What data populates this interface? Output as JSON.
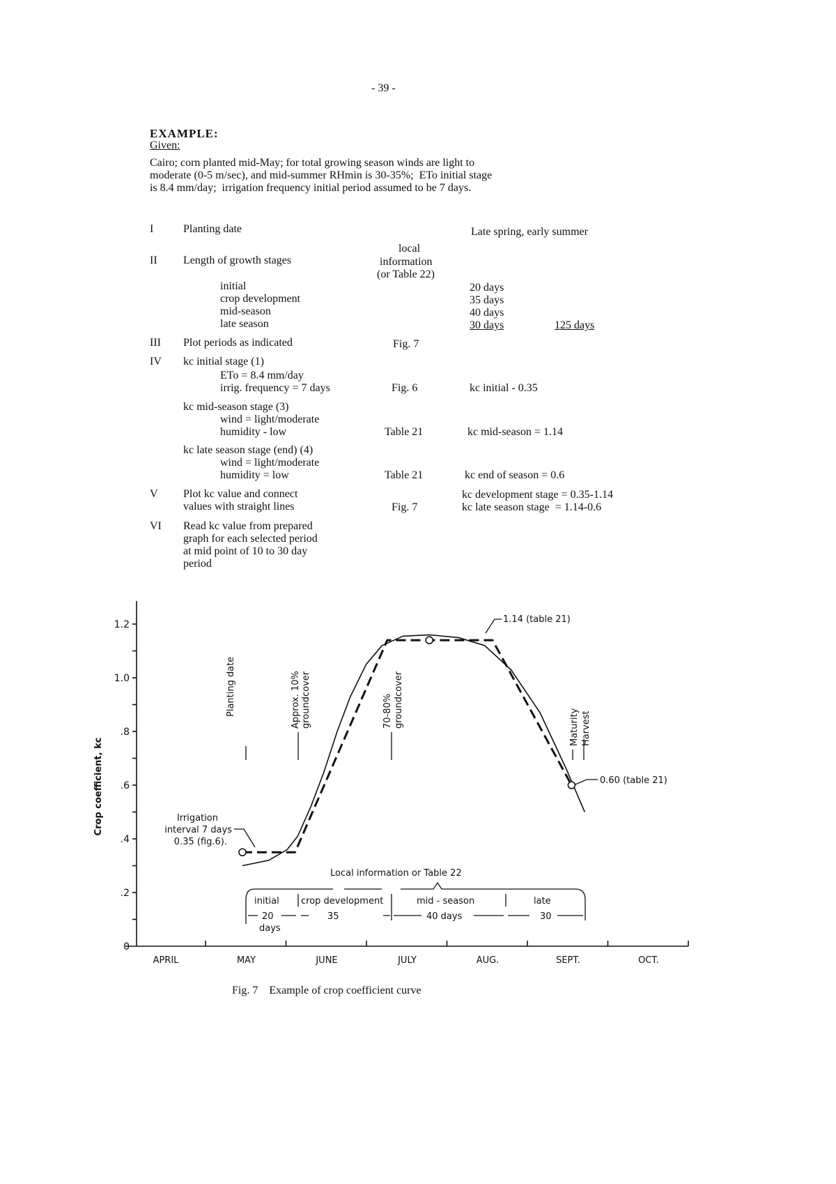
{
  "page_number": "- 39 -",
  "heading": "EXAMPLE:",
  "given_label": "Given:",
  "given_lines": [
    "Cairo; corn planted mid-May; for total growing season winds are light to",
    "moderate (0-5 m/sec), and mid-summer RHmin is 30-35%;  ETo initial stage",
    "is 8.4 mm/day;  irrigation frequency initial period assumed to be 7 days."
  ],
  "steps": {
    "i": {
      "num": "I",
      "label": "Planting date",
      "value": "Late spring, early summer"
    },
    "ii": {
      "num": "II",
      "label": "Length of growth stages",
      "source": [
        "local",
        "information",
        "(or Table 22)"
      ],
      "stages": [
        {
          "name": "initial",
          "days": "20 days"
        },
        {
          "name": "crop development",
          "days": "35 days"
        },
        {
          "name": "mid-season",
          "days": "40 days"
        },
        {
          "name": "late season",
          "days": "30 days"
        }
      ],
      "total": "125 days"
    },
    "iii": {
      "num": "III",
      "label": "Plot periods as indicated",
      "source": "Fig. 7"
    },
    "iv": {
      "num": "IV",
      "a_label": "kc initial stage (1)",
      "a_l1": "ETo = 8.4 mm/day",
      "a_l2": "irrig. frequency = 7 days",
      "a_src": "Fig. 6",
      "a_val": "kc initial - 0.35",
      "b_label": "kc mid-season stage (3)",
      "b_l1": "wind = light/moderate",
      "b_l2": "humidity - low",
      "b_src": "Table 21",
      "b_val": "kc mid-season = 1.14",
      "c_label": "kc late season stage (end) (4)",
      "c_l1": "wind = light/moderate",
      "c_l2": "humidity = low",
      "c_src": "Table 21",
      "c_val": "kc end of season = 0.6"
    },
    "v": {
      "num": "V",
      "l1": "Plot kc value and connect",
      "l2": "values with straight lines",
      "src": "Fig. 7",
      "val1": "kc development stage = 0.35-1.14",
      "val2": "kc late season stage  = 1.14-0.6"
    },
    "vi": {
      "num": "VI",
      "lines": [
        "Read kc value from prepared",
        "graph for each selected period",
        "at mid point of 10 to 30 day",
        "period"
      ]
    }
  },
  "caption": "Fig. 7    Example of crop coefficient curve",
  "chart_data": {
    "type": "line",
    "ylabel": "Crop coefficient, kc",
    "ylim": [
      0,
      1.25
    ],
    "yticks": [
      "0",
      ".2",
      ".4",
      ".6",
      ".8",
      "1.0",
      "1.2"
    ],
    "ytick_values": [
      0,
      0.2,
      0.4,
      0.6,
      0.8,
      1.0,
      1.2
    ],
    "xticks": [
      "APRIL",
      "MAY",
      "JUNE",
      "JULY",
      "AUG.",
      "SEPT.",
      "OCT."
    ],
    "series": [
      {
        "style": "dashed",
        "points": [
          [
            "05-15",
            0.35
          ],
          [
            "06-04",
            0.35
          ],
          [
            "07-09",
            1.14
          ],
          [
            "08-18",
            1.14
          ],
          [
            "09-17",
            0.6
          ]
        ]
      },
      {
        "style": "solid",
        "points": [
          [
            "05-15",
            0.3
          ],
          [
            "05-25",
            0.32
          ],
          [
            "06-01",
            0.36
          ],
          [
            "06-05",
            0.41
          ],
          [
            "06-10",
            0.52
          ],
          [
            "06-15",
            0.65
          ],
          [
            "06-20",
            0.8
          ],
          [
            "06-25",
            0.93
          ],
          [
            "07-01",
            1.05
          ],
          [
            "07-07",
            1.12
          ],
          [
            "07-15",
            1.155
          ],
          [
            "07-25",
            1.16
          ],
          [
            "08-05",
            1.15
          ],
          [
            "08-15",
            1.12
          ],
          [
            "08-25",
            1.03
          ],
          [
            "09-05",
            0.87
          ],
          [
            "09-15",
            0.66
          ],
          [
            "09-22",
            0.5
          ]
        ]
      }
    ],
    "markers": [
      [
        "05-15",
        0.35
      ],
      [
        "07-25",
        1.14
      ],
      [
        "09-17",
        0.6
      ]
    ],
    "annotations": {
      "irrigation": [
        "Irrigation",
        "interval 7 days",
        "0.35 (fig.6)."
      ],
      "mid": "1.14  (table 21)",
      "end": "0.60  (table 21)",
      "planting": "Planting date",
      "ten": [
        "Approx. 10%",
        "groundcover"
      ],
      "seventy": [
        "70-80%",
        "groundcover"
      ],
      "maturity": [
        "Maturity",
        "Harvest"
      ],
      "local": "Local  information  or  Table  22",
      "stages": [
        "initial",
        "crop development",
        "mid - season",
        "late"
      ],
      "durations": [
        "20",
        "35",
        "40 days",
        "30"
      ],
      "days": "days"
    }
  }
}
